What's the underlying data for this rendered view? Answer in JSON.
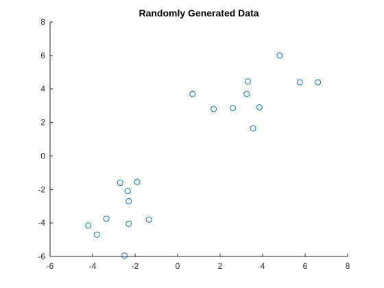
{
  "chart_data": {
    "type": "scatter",
    "title": "Randomly Generated Data",
    "xlabel": "",
    "ylabel": "",
    "xlim": [
      -6,
      8
    ],
    "ylim": [
      -6,
      8
    ],
    "xticks": [
      -6,
      -4,
      -2,
      0,
      2,
      4,
      6,
      8
    ],
    "yticks": [
      -6,
      -4,
      -2,
      0,
      2,
      4,
      6,
      8
    ],
    "grid": false,
    "marker_color": "#0072bd",
    "marker": "circle-open",
    "series": [
      {
        "points": [
          [
            4.8,
            6.0
          ],
          [
            3.3,
            4.45
          ],
          [
            5.75,
            4.4
          ],
          [
            6.6,
            4.4
          ],
          [
            0.7,
            3.7
          ],
          [
            3.25,
            3.7
          ],
          [
            1.7,
            2.8
          ],
          [
            2.6,
            2.85
          ],
          [
            3.85,
            2.9
          ],
          [
            3.55,
            1.65
          ],
          [
            -2.7,
            -1.6
          ],
          [
            -1.9,
            -1.55
          ],
          [
            -2.35,
            -2.1
          ],
          [
            -2.3,
            -2.7
          ],
          [
            -3.35,
            -3.75
          ],
          [
            -1.35,
            -3.8
          ],
          [
            -2.3,
            -4.05
          ],
          [
            -4.2,
            -4.15
          ],
          [
            -3.8,
            -4.7
          ],
          [
            -2.5,
            -5.95
          ]
        ]
      }
    ]
  }
}
